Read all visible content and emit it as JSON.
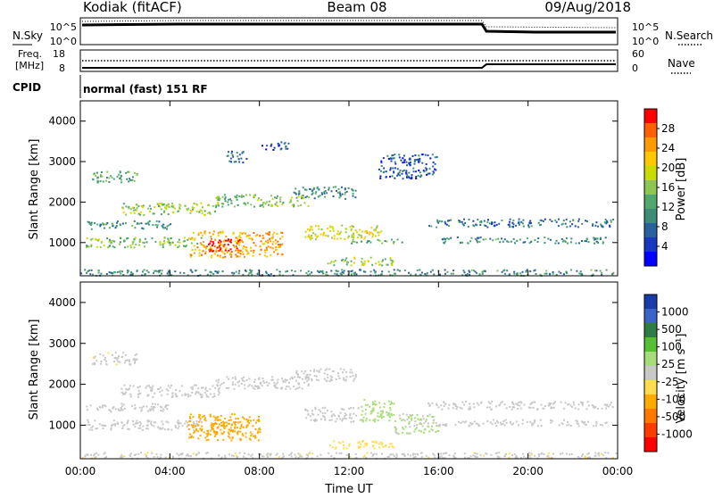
{
  "header": {
    "station": "Kodiak (fitACF)",
    "beam": "Beam 08",
    "date": "09/Aug/2018"
  },
  "status_panels": {
    "nsky_label": "N.Sky",
    "nsky_ticks": [
      "10^5",
      "10^0"
    ],
    "nsearch_label": "N.Search",
    "nsearch_ticks": [
      "10^5",
      "10^0"
    ],
    "freq_label": "Freq.",
    "freq_unit": "[MHz]",
    "freq_ticks": [
      "18",
      "8"
    ],
    "nave_label": "Nave",
    "nave_ticks": [
      "60",
      "0"
    ],
    "cpid_label": "CPID",
    "cpid_text": "normal (fast) 151 RF"
  },
  "axes": {
    "ylabel": "Slant Range [km]",
    "yticks": [
      "4000",
      "3000",
      "2000",
      "1000"
    ],
    "xlabel": "Time UT",
    "xticks": [
      "00:00",
      "04:00",
      "08:00",
      "12:00",
      "16:00",
      "20:00",
      "00:00"
    ]
  },
  "colorbars": {
    "power": {
      "label": "Power [dB]",
      "ticks": [
        "28",
        "24",
        "20",
        "16",
        "12",
        "8",
        "4"
      ],
      "colors": [
        "#ff0000",
        "#ff6000",
        "#ff9a00",
        "#ffc800",
        "#c8dc00",
        "#8cc850",
        "#50a870",
        "#3c8c78",
        "#2860a0",
        "#1838c0",
        "#0000ff"
      ]
    },
    "velocity": {
      "label": "Velocity [m s⁻¹]",
      "ticks": [
        "1000",
        "500",
        "100",
        "25",
        "-25",
        "-100",
        "-500",
        "-1000"
      ],
      "colors": [
        "#1a3ca8",
        "#3c64c8",
        "#2e7d46",
        "#55c030",
        "#a8dc78",
        "#c8c8c8",
        "#ffdc50",
        "#ffaa00",
        "#ff7800",
        "#ff3c00",
        "#ff0000"
      ]
    }
  },
  "chart_data": [
    {
      "type": "heatmap",
      "title": "Power",
      "xlabel": "Time UT",
      "ylabel": "Slant Range [km]",
      "xlim": [
        0,
        24
      ],
      "ylim": [
        180,
        4500
      ],
      "colorbar_label": "Power [dB]",
      "clim": [
        0,
        30
      ],
      "regions": [
        {
          "t0": 0.2,
          "t1": 5.5,
          "r0": 900,
          "r1": 1150,
          "value": 14
        },
        {
          "t0": 0.2,
          "t1": 4.0,
          "r0": 1350,
          "r1": 1550,
          "value": 10
        },
        {
          "t0": 0.5,
          "t1": 2.5,
          "r0": 2500,
          "r1": 2800,
          "value": 12
        },
        {
          "t0": 1.8,
          "t1": 6.2,
          "r0": 1700,
          "r1": 2000,
          "value": 16
        },
        {
          "t0": 4.8,
          "t1": 9.0,
          "r0": 650,
          "r1": 1300,
          "value": 22
        },
        {
          "t0": 5.6,
          "t1": 7.2,
          "r0": 800,
          "r1": 1100,
          "value": 29
        },
        {
          "t0": 6.0,
          "t1": 10.2,
          "r0": 1900,
          "r1": 2200,
          "value": 14
        },
        {
          "t0": 6.5,
          "t1": 7.5,
          "r0": 3000,
          "r1": 3300,
          "value": 8
        },
        {
          "t0": 8.0,
          "t1": 9.3,
          "r0": 3300,
          "r1": 3500,
          "value": 6
        },
        {
          "t0": 9.5,
          "t1": 12.3,
          "r0": 2100,
          "r1": 2400,
          "value": 10
        },
        {
          "t0": 10.0,
          "t1": 13.5,
          "r0": 1100,
          "r1": 1450,
          "value": 18
        },
        {
          "t0": 11.0,
          "t1": 14.0,
          "r0": 450,
          "r1": 650,
          "value": 16
        },
        {
          "t0": 12.0,
          "t1": 14.5,
          "r0": 1000,
          "r1": 1100,
          "value": 12
        },
        {
          "t0": 13.3,
          "t1": 16.0,
          "r0": 2600,
          "r1": 3200,
          "value": 6
        },
        {
          "t0": 15.5,
          "t1": 23.8,
          "r0": 1400,
          "r1": 1600,
          "value": 8
        },
        {
          "t0": 16.0,
          "t1": 23.5,
          "r0": 1000,
          "r1": 1150,
          "value": 10
        },
        {
          "t0": 0.0,
          "t1": 24.0,
          "r0": 200,
          "r1": 350,
          "value": 10
        }
      ]
    },
    {
      "type": "heatmap",
      "title": "Velocity",
      "xlabel": "Time UT",
      "ylabel": "Slant Range [km]",
      "xlim": [
        0,
        24
      ],
      "ylim": [
        180,
        4500
      ],
      "colorbar_label": "Velocity [m s⁻¹]",
      "clim": [
        -1000,
        1000
      ],
      "regions": [
        {
          "t0": 0.2,
          "t1": 5.5,
          "r0": 900,
          "r1": 1150,
          "value": 0
        },
        {
          "t0": 0.2,
          "t1": 4.0,
          "r0": 1350,
          "r1": 1550,
          "value": 0
        },
        {
          "t0": 0.5,
          "t1": 2.5,
          "r0": 2500,
          "r1": 2800,
          "value": -60
        },
        {
          "t0": 1.8,
          "t1": 6.2,
          "r0": 1700,
          "r1": 2000,
          "value": 0
        },
        {
          "t0": 4.8,
          "t1": 8.0,
          "r0": 650,
          "r1": 1300,
          "value": -350
        },
        {
          "t0": 5.6,
          "t1": 7.2,
          "r0": 800,
          "r1": 1100,
          "value": -400
        },
        {
          "t0": 6.0,
          "t1": 10.2,
          "r0": 1900,
          "r1": 2200,
          "value": 0
        },
        {
          "t0": 9.5,
          "t1": 12.3,
          "r0": 2100,
          "r1": 2400,
          "value": 0
        },
        {
          "t0": 10.0,
          "t1": 12.5,
          "r0": 1100,
          "r1": 1450,
          "value": 0
        },
        {
          "t0": 12.5,
          "t1": 14.0,
          "r0": 1100,
          "r1": 1650,
          "value": 150
        },
        {
          "t0": 14.0,
          "t1": 16.0,
          "r0": 800,
          "r1": 1300,
          "value": 100
        },
        {
          "t0": 11.0,
          "t1": 14.0,
          "r0": 450,
          "r1": 650,
          "value": -200
        },
        {
          "t0": 15.5,
          "t1": 23.8,
          "r0": 1400,
          "r1": 1600,
          "value": 0
        },
        {
          "t0": 16.0,
          "t1": 23.5,
          "r0": 1000,
          "r1": 1150,
          "value": 0
        },
        {
          "t0": 0.0,
          "t1": 24.0,
          "r0": 200,
          "r1": 350,
          "value": -60
        }
      ]
    }
  ]
}
